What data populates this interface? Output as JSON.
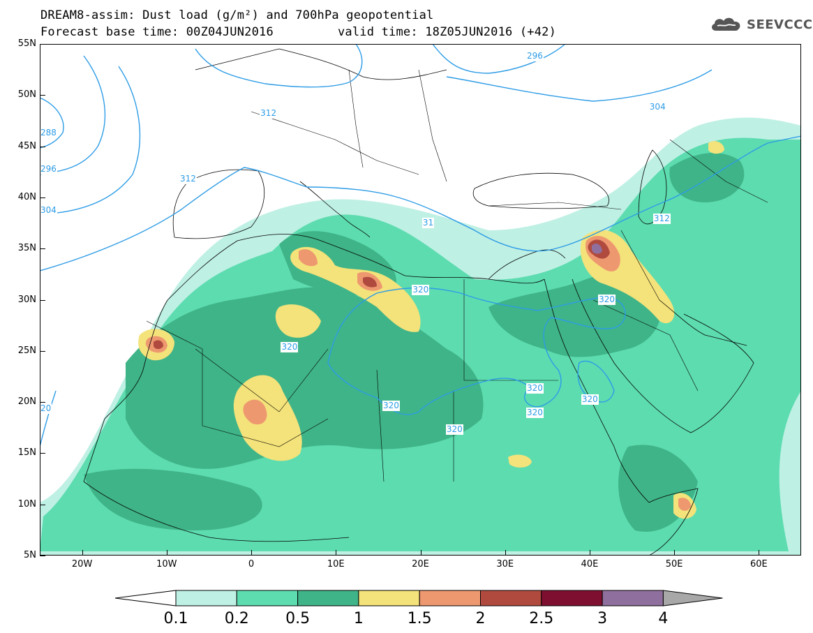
{
  "header": {
    "title_line1": "DREAM8-assim: Dust load (g/m²) and 700hPa geopotential",
    "base_time": "Forecast base time: 00Z04JUN2016",
    "valid_time": "valid time: 18Z05JUN2016 (+42)",
    "logo_text": "SEEVCCC"
  },
  "axes": {
    "lat_labels": [
      "55N",
      "50N",
      "45N",
      "40N",
      "35N",
      "30N",
      "25N",
      "20N",
      "15N",
      "10N",
      "5N"
    ],
    "lon_labels": [
      "20W",
      "10W",
      "0",
      "10E",
      "20E",
      "30E",
      "40E",
      "50E",
      "60E"
    ],
    "lon_values": [
      -20,
      -10,
      0,
      10,
      20,
      30,
      40,
      50,
      60
    ],
    "lat_range": [
      5,
      55
    ],
    "lon_range": [
      -25,
      65
    ]
  },
  "contours": {
    "labels": [
      {
        "text": "312",
        "lon": 1,
        "lat": 48.2
      },
      {
        "text": "312",
        "lon": -8.5,
        "lat": 41.8
      },
      {
        "text": "296",
        "lon": 32.5,
        "lat": 53.8
      },
      {
        "text": "304",
        "lon": 47,
        "lat": 48.8
      },
      {
        "text": "288",
        "lon": -25,
        "lat": 46.3
      },
      {
        "text": "296",
        "lon": -25,
        "lat": 42.7
      },
      {
        "text": "304",
        "lon": -25,
        "lat": 38.7
      },
      {
        "text": "312",
        "lon": 47.5,
        "lat": 37.9
      },
      {
        "text": "31",
        "lon": 20.2,
        "lat": 37.5
      },
      {
        "text": "320",
        "lon": 19,
        "lat": 30.9
      },
      {
        "text": "320",
        "lon": 41,
        "lat": 30.0
      },
      {
        "text": "320",
        "lon": 3.5,
        "lat": 25.3
      },
      {
        "text": "320",
        "lon": 32.5,
        "lat": 21.3
      },
      {
        "text": "320",
        "lon": 39,
        "lat": 20.2
      },
      {
        "text": "320",
        "lon": 32.5,
        "lat": 18.9
      },
      {
        "text": "320",
        "lon": 15.5,
        "lat": 19.6
      },
      {
        "text": "320",
        "lon": 23,
        "lat": 17.3
      },
      {
        "text": "20",
        "lon": -25,
        "lat": 19.3
      }
    ]
  },
  "legend": {
    "labels": [
      "0.1",
      "0.2",
      "0.5",
      "1",
      "1.5",
      "2",
      "2.5",
      "3",
      "4"
    ],
    "colors": [
      "#bff0e4",
      "#5ddcb0",
      "#3fb488",
      "#f4e27a",
      "#ee9870",
      "#b04a3e",
      "#7e0f30",
      "#8f6f9d",
      "#a8a8a8"
    ]
  },
  "colors": {
    "contour": "#2d9ce6",
    "background": "#ffffff",
    "low": "#bff0e4",
    "mid": "#5ddcb0",
    "high": "#3fb488"
  }
}
